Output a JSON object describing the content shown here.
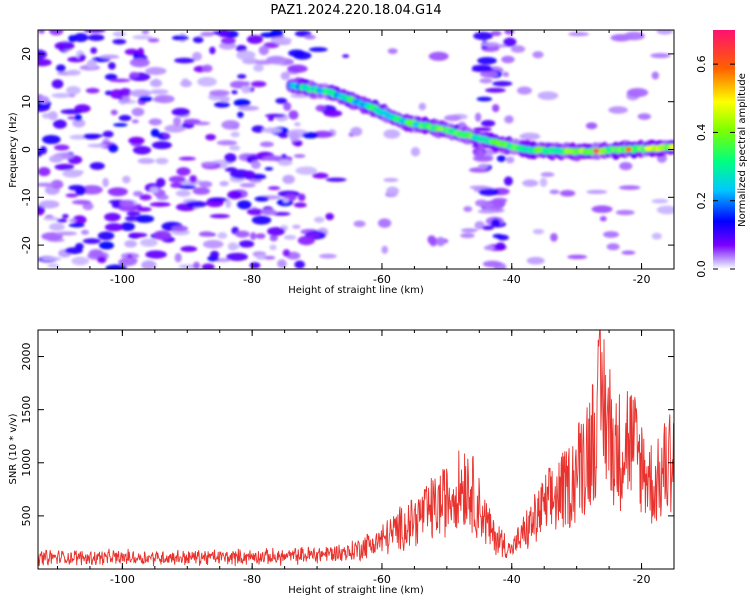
{
  "figure_title": "PAZ1.2024.220.18.04.G14",
  "chart_data": [
    {
      "type": "heatmap",
      "xlabel": "Height of straight line (km)",
      "ylabel": "Frequency (Hz)",
      "xlim": [
        -113,
        -15
      ],
      "ylim": [
        -25,
        25
      ],
      "xticks": [
        -100,
        -80,
        -60,
        -40,
        -20
      ],
      "yticks": [
        -20,
        -10,
        0,
        10,
        20
      ],
      "colorbar_label": "Normalized spectral amplitude",
      "colorbar_range": [
        0,
        0.7
      ],
      "colorbar_ticks": [
        0.0,
        0.2,
        0.4,
        0.6
      ],
      "colormap": [
        "#7a00ff",
        "#0000ff",
        "#00ffff",
        "#00ff00",
        "#ffff00",
        "#ff0000",
        "#ff1493"
      ],
      "ridge": [
        [
          -74,
          13.5
        ],
        [
          -68,
          12
        ],
        [
          -62,
          9
        ],
        [
          -57,
          6
        ],
        [
          -50,
          4
        ],
        [
          -44,
          2
        ],
        [
          -38,
          0
        ],
        [
          -30,
          -0.5
        ],
        [
          -22,
          0
        ],
        [
          -15,
          0.5
        ]
      ],
      "ridge_peak_amplitude": 0.7,
      "noise_band_x": [
        -113,
        -65
      ],
      "secondary_band_x": [
        -45,
        -40
      ]
    },
    {
      "type": "line",
      "xlabel": "Height of straight line (km)",
      "ylabel": "SNR (10 * v/v)",
      "xlim": [
        -113,
        -15
      ],
      "ylim": [
        0,
        2250
      ],
      "xticks": [
        -100,
        -80,
        -60,
        -40,
        -20
      ],
      "yticks": [
        500,
        1000,
        1500,
        2000
      ],
      "color": "#e8322d",
      "envelope_km": [
        -113,
        -90,
        -75,
        -65,
        -60,
        -50,
        -47,
        -43,
        -40,
        -35,
        -31,
        -28,
        -26,
        -24,
        -22,
        -20,
        -18,
        -15
      ],
      "envelope_snr": [
        150,
        150,
        160,
        220,
        380,
        900,
        1150,
        450,
        250,
        800,
        1100,
        1600,
        2220,
        1500,
        1700,
        1350,
        1050,
        1550
      ]
    }
  ]
}
